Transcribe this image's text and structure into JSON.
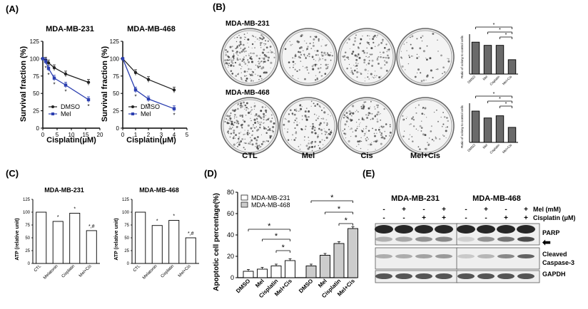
{
  "panels": {
    "A": {
      "label": "(A)",
      "charts": [
        {
          "title": "MDA-MB-231",
          "ylabel": "Survival fraction (%)",
          "xlabel": "Cisplatin(μM)",
          "xticks": [
            "0",
            "5",
            "10",
            "15",
            "20"
          ],
          "yticks": [
            "0",
            "25",
            "50",
            "75",
            "100",
            "125"
          ],
          "legend": [
            "DMSO",
            "Mel"
          ],
          "star": "*"
        },
        {
          "title": "MDA-MB-468",
          "ylabel": "Survival fraction (%)",
          "xlabel": "Cisplatin(μM)",
          "xticks": [
            "0",
            "1",
            "2",
            "3",
            "4",
            "5"
          ],
          "yticks": [
            "0",
            "25",
            "50",
            "75",
            "100",
            "125"
          ],
          "legend": [
            "DMSO",
            "Mel"
          ],
          "star": "*"
        }
      ]
    },
    "B": {
      "label": "(B)",
      "rows": [
        "MDA-MB-231",
        "MDA-MB-468"
      ],
      "columns": [
        "CTL",
        "Mel",
        "Cis",
        "Mel+Cis"
      ],
      "bar_ylabel": "Ratio of colony to control cells",
      "bar_categories": [
        "DMSO",
        "Mel",
        "Cisplatin",
        "Mel+Cis"
      ],
      "star": "*"
    },
    "C": {
      "label": "(C)",
      "charts": [
        {
          "title": "MDA-MB-231",
          "ylabel": "ATP (relative unit)",
          "yticks": [
            "0",
            "25",
            "50",
            "75",
            "100",
            "125"
          ],
          "categories": [
            "CTL",
            "Melatonin",
            "Cisplatin",
            "Mel+Cis"
          ],
          "marks": [
            "",
            "*",
            "*",
            "*,#"
          ]
        },
        {
          "title": "MDA-MB-468",
          "ylabel": "ATP (relative unit)",
          "yticks": [
            "0",
            "25",
            "50",
            "75",
            "100",
            "125"
          ],
          "categories": [
            "CTL",
            "Melatonin",
            "Cisplatin",
            "Mel+Cis"
          ],
          "marks": [
            "",
            "*",
            "*",
            "*,#"
          ]
        }
      ]
    },
    "D": {
      "label": "(D)",
      "ylabel": "Apoptotic cell percentage(%)",
      "yticks": [
        "0",
        "20",
        "40",
        "60",
        "80"
      ],
      "legend": [
        "MDA-MB-231",
        "MDA-MB-468"
      ],
      "categories": [
        "DMSO",
        "Mel",
        "Cisplatin",
        "Mel+Cis",
        "DMSO",
        "Mel",
        "Cisplatin",
        "Mel+Cis"
      ],
      "star": "*"
    },
    "E": {
      "label": "(E)",
      "cell_lines": [
        "MDA-MB-231",
        "MDA-MB-468"
      ],
      "treatments": [
        "Mel (mM)",
        "Cisplatin (μM)"
      ],
      "mel_signs": [
        "-",
        "+",
        "-",
        "+",
        "-",
        "+",
        "-",
        "+"
      ],
      "cis_signs": [
        "-",
        "-",
        "+",
        "+",
        "-",
        "-",
        "+",
        "+"
      ],
      "bands": [
        "PARP",
        "Cleaved",
        "Caspase-3",
        "GAPDH"
      ],
      "arrow": "⬅"
    }
  },
  "chart_data": [
    {
      "type": "line",
      "title": "MDA-MB-231",
      "xlabel": "Cisplatin(μM)",
      "ylabel": "Survival fraction (%)",
      "xlim": [
        0,
        20
      ],
      "ylim": [
        0,
        125
      ],
      "series": [
        {
          "name": "DMSO",
          "x": [
            0,
            1,
            2,
            4,
            8,
            16
          ],
          "y": [
            100,
            98,
            94,
            87,
            78,
            66
          ]
        },
        {
          "name": "Mel",
          "x": [
            0,
            1,
            2,
            4,
            8,
            16
          ],
          "y": [
            100,
            96,
            86,
            72,
            62,
            41
          ]
        }
      ]
    },
    {
      "type": "line",
      "title": "MDA-MB-468",
      "xlabel": "Cisplatin(μM)",
      "ylabel": "Survival fraction (%)",
      "xlim": [
        0,
        5
      ],
      "ylim": [
        0,
        125
      ],
      "series": [
        {
          "name": "DMSO",
          "x": [
            0,
            1,
            2,
            4
          ],
          "y": [
            100,
            80,
            70,
            55
          ]
        },
        {
          "name": "Mel",
          "x": [
            0,
            1,
            2,
            4
          ],
          "y": [
            100,
            55,
            42,
            28
          ]
        }
      ]
    },
    {
      "type": "bar",
      "title": "MDA-MB-231",
      "ylabel": "Ratio of colony to control cells",
      "categories": [
        "DMSO",
        "Mel",
        "Cisplatin",
        "Mel+Cis"
      ],
      "values": [
        100,
        90,
        90,
        45
      ],
      "ylim": [
        0,
        125
      ]
    },
    {
      "type": "bar",
      "title": "MDA-MB-468",
      "ylabel": "Ratio of colony to control cells",
      "categories": [
        "DMSO",
        "Mel",
        "Cisplatin",
        "Mel+Cis"
      ],
      "values": [
        100,
        78,
        85,
        48
      ],
      "ylim": [
        0,
        125
      ]
    },
    {
      "type": "bar",
      "title": "MDA-MB-231",
      "ylabel": "ATP (relative unit)",
      "categories": [
        "CTL",
        "Melatonin",
        "Cisplatin",
        "Mel+Cis"
      ],
      "values": [
        100,
        82,
        98,
        64
      ],
      "ylim": [
        0,
        125
      ]
    },
    {
      "type": "bar",
      "title": "MDA-MB-468",
      "ylabel": "ATP (relative unit)",
      "categories": [
        "CTL",
        "Melatonin",
        "Cisplatin",
        "Mel+Cis"
      ],
      "values": [
        100,
        74,
        84,
        50
      ],
      "ylim": [
        0,
        125
      ]
    },
    {
      "type": "bar",
      "ylabel": "Apoptotic cell percentage(%)",
      "ylim": [
        0,
        80
      ],
      "series": [
        {
          "name": "MDA-MB-231",
          "categories": [
            "DMSO",
            "Mel",
            "Cisplatin",
            "Mel+Cis"
          ],
          "values": [
            6,
            8,
            11,
            16
          ]
        },
        {
          "name": "MDA-MB-468",
          "categories": [
            "DMSO",
            "Mel",
            "Cisplatin",
            "Mel+Cis"
          ],
          "values": [
            11,
            21,
            32,
            46
          ]
        }
      ]
    }
  ]
}
